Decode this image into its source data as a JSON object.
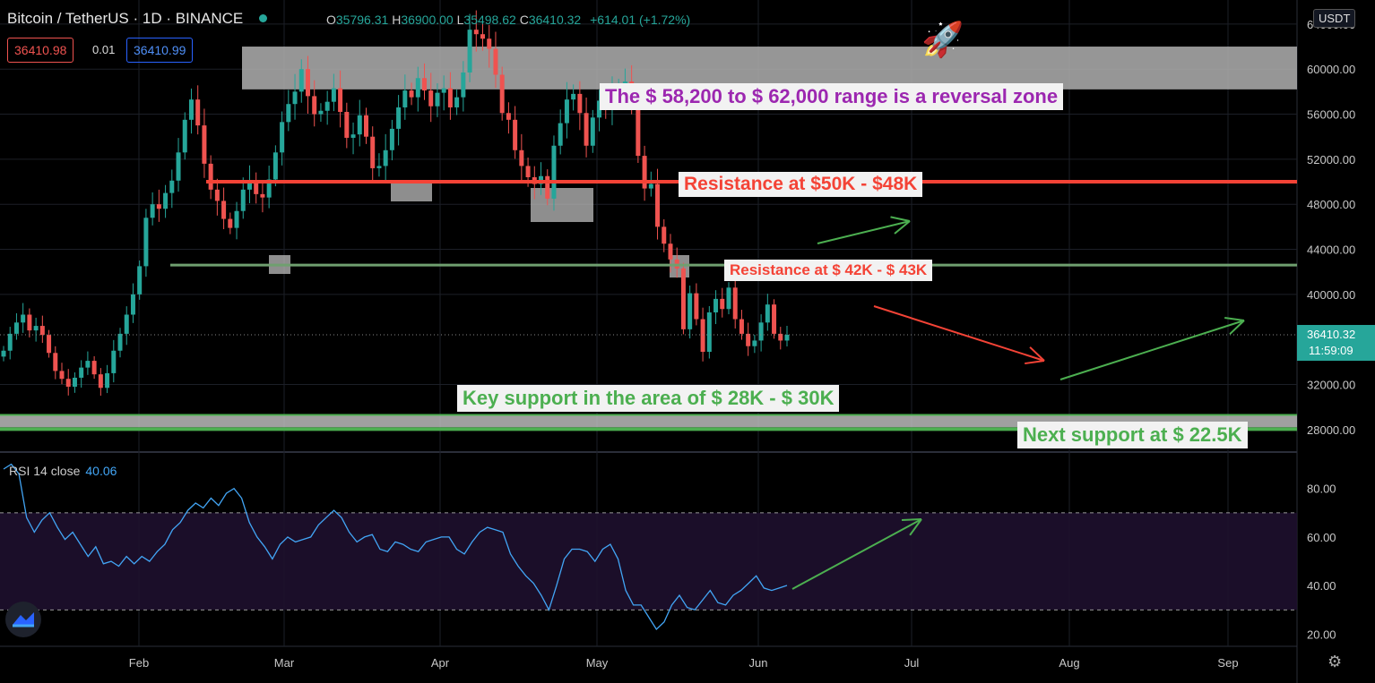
{
  "header": {
    "symbol": "Bitcoin / TetherUS · 1D · BINANCE",
    "open_label": "O",
    "open": "35796.31",
    "high_label": "H",
    "high": "36900.00",
    "low_label": "L",
    "low": "35498.62",
    "close_label": "C",
    "close": "36410.32",
    "change": "+614.01 (+1.72%)"
  },
  "order": {
    "sell": "36410.98",
    "spread": "0.01",
    "buy": "36410.99"
  },
  "currency": "USDT",
  "rsi": {
    "label": "RSI 14 close",
    "value": "40.06"
  },
  "price_tag": {
    "price": "36410.32",
    "countdown": "11:59:09"
  },
  "colors": {
    "up": "#26a69a",
    "down": "#ef5350",
    "rsi": "#42a5f5",
    "resistance": "#f44336",
    "support": "#4caf50",
    "zone": "#a0a0a0"
  },
  "icons": [
    "rocket-icon",
    "tradingview-logo-icon",
    "settings-icon"
  ],
  "chart_data": [
    {
      "type": "candlestick",
      "x_ticks": [
        "Feb",
        "Mar",
        "Apr",
        "May",
        "Jun",
        "Jul",
        "Aug",
        "Sep"
      ],
      "y_ticks": [
        "64000.00",
        "60000.00",
        "56000.00",
        "52000.00",
        "48000.00",
        "44000.00",
        "40000.00",
        "32000.00",
        "28000.00"
      ],
      "ylim": [
        26000,
        65500
      ],
      "close_path": [
        35000,
        36500,
        37500,
        38200,
        36800,
        37200,
        36400,
        34800,
        33200,
        32500,
        31800,
        32600,
        33500,
        34100,
        32900,
        31700,
        33000,
        35000,
        36500,
        38200,
        40000,
        42500,
        46800,
        48000,
        47600,
        49000,
        50100,
        52600,
        55500,
        57300,
        55000,
        51600,
        49300,
        48300,
        46700,
        45900,
        47400,
        49300,
        50100,
        48900,
        48600,
        50200,
        52600,
        55300,
        56900,
        58000,
        60000,
        57600,
        56000,
        56300,
        57100,
        58300,
        56200,
        53900,
        54200,
        55900,
        54000,
        51200,
        51400,
        52800,
        54700,
        56600,
        58100,
        57500,
        59200,
        58100,
        56700,
        57900,
        58300,
        56600,
        57500,
        59700,
        63500,
        63100,
        62700,
        61800,
        59500,
        56100,
        55500,
        52800,
        51400,
        50400,
        49800,
        50500,
        48500,
        53200,
        55200,
        57300,
        57800,
        56100,
        53200,
        55700,
        57200,
        56400,
        57800,
        58300,
        58900,
        57100,
        52300,
        49400,
        49800,
        46000,
        44500,
        43100,
        42300,
        36900,
        40100,
        37800,
        34900,
        38400,
        39600,
        38700,
        40600,
        37800,
        36500,
        35400,
        35900,
        37500,
        39100,
        36500,
        35900,
        36410
      ],
      "last_price": "36410.32",
      "horizontal_lines": [
        {
          "kind": "resistance",
          "value": 50000
        },
        {
          "kind": "resistance",
          "value": 42600
        }
      ],
      "zones": [
        {
          "kind": "reversal",
          "from": 58200,
          "to": 62000
        },
        {
          "kind": "support",
          "from": 28200,
          "to": 29300
        }
      ],
      "annotations": [
        {
          "text": "The $ 58,200 to $ 62,000 range is a reversal zone",
          "color": "#9c27b0",
          "size": 22
        },
        {
          "text": "Resistance at $50K - $48K",
          "color": "#f44336",
          "size": 21
        },
        {
          "text": "Resistance at $ 42K - $ 43K",
          "color": "#f44336",
          "size": 17
        },
        {
          "text": "Key support in the area of $ 28K - $ 30K",
          "color": "#4caf50",
          "size": 22
        },
        {
          "text": "Next support at $ 22.5K",
          "color": "#4caf50",
          "size": 22
        }
      ]
    },
    {
      "type": "line",
      "y_ticks": [
        "80.00",
        "60.00",
        "40.00",
        "20.00"
      ],
      "ylim": [
        15,
        95
      ],
      "bands": [
        30,
        70
      ],
      "values": [
        88,
        90,
        86,
        68,
        62,
        67,
        70,
        64,
        59,
        62,
        57,
        52,
        56,
        49,
        50,
        48,
        52,
        49,
        52,
        50,
        54,
        57,
        63,
        66,
        71,
        74,
        72,
        76,
        73,
        78,
        80,
        76,
        66,
        60,
        56,
        51,
        57,
        60,
        58,
        59,
        60,
        65,
        68,
        71,
        68,
        62,
        58,
        60,
        61,
        55,
        54,
        58,
        57,
        55,
        54,
        58,
        59,
        60,
        60,
        55,
        53,
        58,
        62,
        64,
        63,
        62,
        53,
        48,
        44,
        41,
        36,
        30,
        40,
        51,
        55,
        55,
        54,
        50,
        55,
        57,
        51,
        38,
        32,
        32,
        27,
        22,
        25,
        32,
        36,
        31,
        30,
        34,
        38,
        33,
        32,
        36,
        38,
        41,
        44,
        39,
        38,
        39,
        40.06
      ]
    }
  ]
}
